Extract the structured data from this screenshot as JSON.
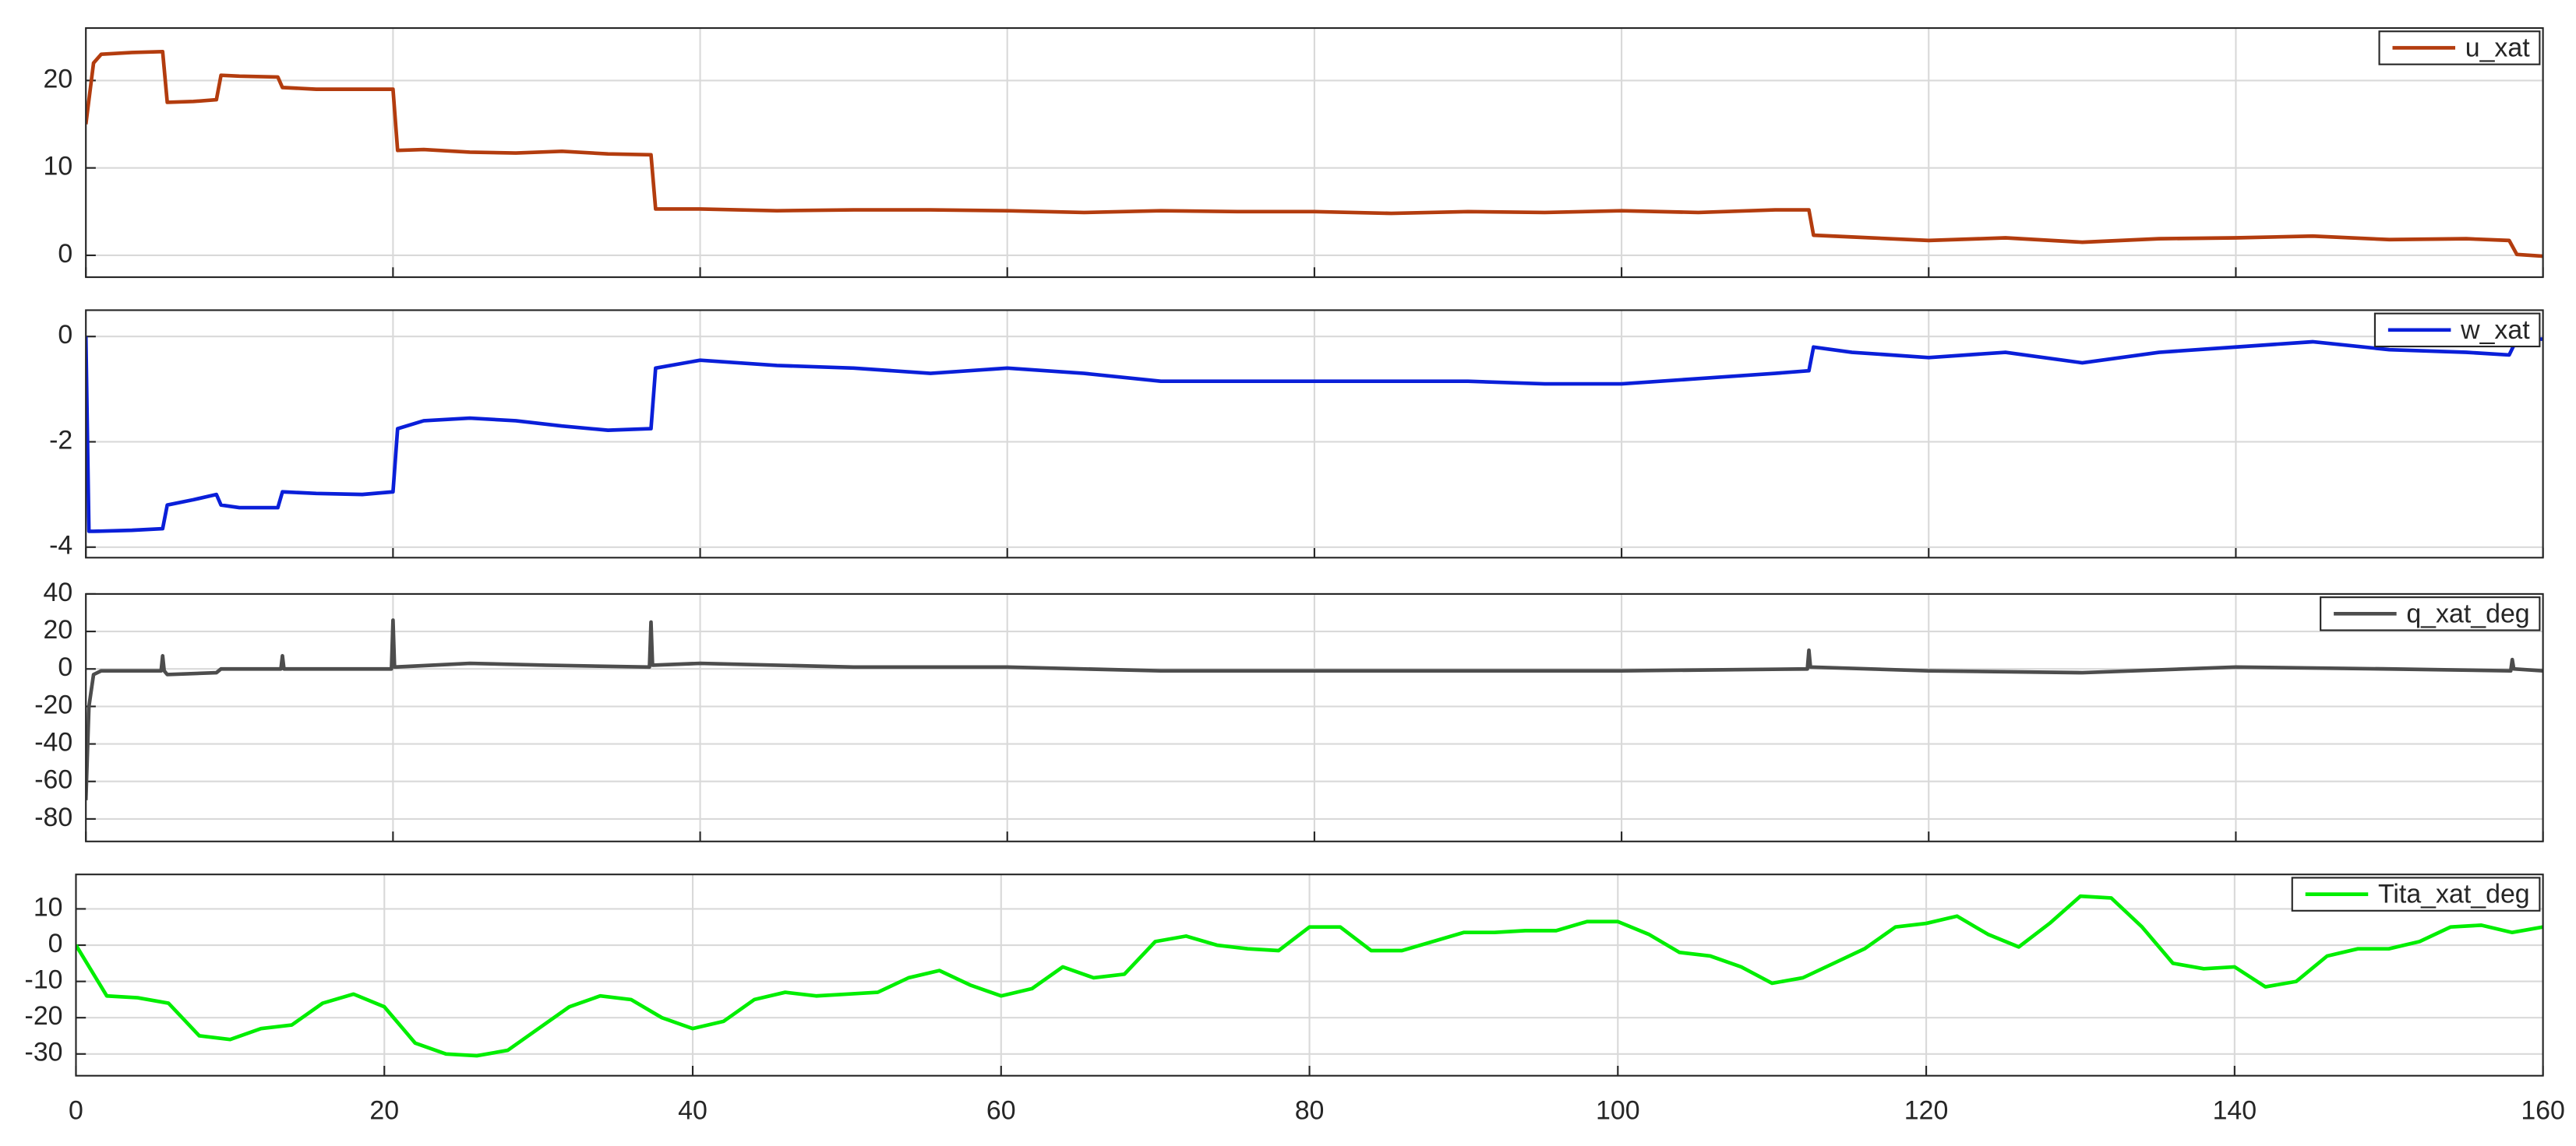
{
  "chart_data": [
    {
      "type": "line",
      "xlim": [
        0,
        160
      ],
      "xticks": [
        0,
        20,
        40,
        60,
        80,
        100,
        120,
        140,
        160
      ],
      "ylim": [
        -2.5,
        26
      ],
      "yticks": [
        0,
        10,
        20
      ],
      "grid": true,
      "legend": "upper right",
      "x": [
        0,
        0.5,
        1,
        3,
        5,
        5.3,
        7,
        8.5,
        8.8,
        10,
        12.5,
        12.8,
        15,
        18,
        20,
        20.3,
        22,
        25,
        28,
        31,
        34,
        36.8,
        37.1,
        40,
        45,
        50,
        55,
        60,
        65,
        70,
        75,
        80,
        85,
        90,
        95,
        100,
        105,
        110,
        112.2,
        112.5,
        115,
        120,
        125,
        130,
        135,
        140,
        145,
        150,
        155,
        157.8,
        158.3,
        160
      ],
      "series": [
        {
          "name": "u_xat",
          "color": "#b33c0e",
          "values": [
            15,
            22,
            23,
            23.2,
            23.3,
            17.5,
            17.6,
            17.8,
            20.6,
            20.5,
            20.4,
            19.2,
            19,
            19,
            19,
            12,
            12.1,
            11.8,
            11.7,
            11.9,
            11.6,
            11.5,
            5.3,
            5.3,
            5.1,
            5.2,
            5.2,
            5.1,
            4.9,
            5.1,
            5.0,
            5.0,
            4.8,
            5.0,
            4.9,
            5.1,
            4.9,
            5.2,
            5.2,
            2.3,
            2.1,
            1.7,
            2.0,
            1.5,
            1.9,
            2.0,
            2.2,
            1.8,
            1.9,
            1.7,
            0.1,
            -0.1
          ]
        }
      ]
    },
    {
      "type": "line",
      "xlim": [
        0,
        160
      ],
      "xticks": [
        0,
        20,
        40,
        60,
        80,
        100,
        120,
        140,
        160
      ],
      "ylim": [
        -4.2,
        0.5
      ],
      "yticks": [
        -4,
        -2,
        0
      ],
      "grid": true,
      "legend": "upper right",
      "x": [
        0,
        0.2,
        0.5,
        3,
        5,
        5.3,
        7,
        8.5,
        8.8,
        10,
        12.5,
        12.8,
        15,
        18,
        20,
        20.3,
        22,
        25,
        28,
        31,
        34,
        36.8,
        37.1,
        40,
        45,
        50,
        55,
        60,
        65,
        70,
        75,
        80,
        85,
        90,
        95,
        100,
        105,
        110,
        112.2,
        112.5,
        115,
        120,
        125,
        130,
        135,
        140,
        145,
        150,
        155,
        157.8,
        158.3,
        160
      ],
      "series": [
        {
          "name": "w_xat",
          "color": "#0a1fd9",
          "values": [
            0,
            -3.7,
            -3.7,
            -3.68,
            -3.65,
            -3.2,
            -3.1,
            -3.0,
            -3.2,
            -3.25,
            -3.25,
            -2.95,
            -2.98,
            -3.0,
            -2.95,
            -1.75,
            -1.6,
            -1.55,
            -1.6,
            -1.7,
            -1.78,
            -1.75,
            -0.6,
            -0.45,
            -0.55,
            -0.6,
            -0.7,
            -0.6,
            -0.7,
            -0.85,
            -0.85,
            -0.85,
            -0.85,
            -0.85,
            -0.9,
            -0.9,
            -0.8,
            -0.7,
            -0.65,
            -0.2,
            -0.3,
            -0.4,
            -0.3,
            -0.5,
            -0.3,
            -0.2,
            -0.1,
            -0.25,
            -0.3,
            -0.35,
            -0.05,
            -0.05
          ]
        }
      ]
    },
    {
      "type": "line",
      "xlim": [
        0,
        160
      ],
      "xticks": [
        0,
        20,
        40,
        60,
        80,
        100,
        120,
        140,
        160
      ],
      "ylim": [
        -92,
        40
      ],
      "yticks": [
        40,
        20,
        0,
        -20,
        -40,
        -60,
        -80
      ],
      "grid": true,
      "legend": "upper right",
      "x": [
        0,
        0.2,
        0.5,
        1,
        4.9,
        5,
        5.1,
        5.3,
        8.5,
        8.8,
        12.7,
        12.8,
        12.9,
        15,
        19.9,
        20,
        20.1,
        25,
        30,
        36.7,
        36.8,
        36.9,
        40,
        50,
        60,
        70,
        80,
        90,
        100,
        112.1,
        112.2,
        112.3,
        120,
        130,
        140,
        150,
        157.9,
        158,
        158.1,
        160
      ],
      "series": [
        {
          "name": "q_xat_deg",
          "color": "#4d4d4d",
          "values": [
            -70,
            -20,
            -3,
            -1,
            -1,
            7,
            -1,
            -3,
            -2,
            0,
            0,
            7,
            0,
            0,
            0,
            26,
            1,
            3,
            2,
            1,
            25,
            2,
            3,
            1,
            1,
            -1,
            -1,
            -1,
            -1,
            0,
            10,
            1,
            -1,
            -2,
            1,
            0,
            -1,
            5,
            0,
            -1
          ]
        }
      ]
    },
    {
      "type": "line",
      "xlim": [
        0,
        160
      ],
      "xticks": [
        0,
        20,
        40,
        60,
        80,
        100,
        120,
        140,
        160
      ],
      "ylim": [
        -36,
        19.5
      ],
      "yticks": [
        -30,
        -20,
        -10,
        0,
        10
      ],
      "grid": true,
      "legend": "upper right",
      "x": [
        0,
        2,
        4,
        6,
        8,
        10,
        12,
        14,
        16,
        18,
        20,
        22,
        24,
        26,
        28,
        30,
        32,
        34,
        36,
        38,
        40,
        42,
        44,
        46,
        48,
        50,
        52,
        54,
        56,
        58,
        60,
        62,
        64,
        66,
        68,
        70,
        72,
        74,
        76,
        78,
        80,
        82,
        84,
        86,
        88,
        90,
        92,
        94,
        96,
        98,
        100,
        102,
        104,
        106,
        108,
        110,
        112,
        114,
        116,
        118,
        120,
        122,
        124,
        126,
        128,
        130,
        132,
        134,
        136,
        138,
        140,
        142,
        144,
        146,
        148,
        150,
        152,
        154,
        156,
        158,
        160
      ],
      "series": [
        {
          "name": "Tita_xat_deg",
          "color": "#00ee00",
          "values": [
            0,
            -14,
            -14.5,
            -16,
            -25,
            -26,
            -23,
            -22,
            -16,
            -13.5,
            -17,
            -27,
            -30,
            -30.5,
            -29,
            -23,
            -17,
            -14,
            -15,
            -20,
            -23,
            -21,
            -15,
            -13,
            -14,
            -13.5,
            -13,
            -9,
            -7,
            -11,
            -14,
            -12,
            -6,
            -9,
            -8,
            1,
            2.5,
            0,
            -1,
            -1.5,
            5,
            5,
            -1.5,
            -1.5,
            1,
            3.5,
            3.5,
            4,
            4,
            6.5,
            6.5,
            3,
            -2,
            -3,
            -6,
            -10.5,
            -9,
            -5,
            -1,
            5,
            6,
            8,
            3,
            -0.5,
            6,
            13.5,
            13,
            5,
            -5,
            -6.5,
            -6,
            -11.5,
            -10,
            -3,
            -1,
            -1,
            1,
            5,
            5.5,
            3.5,
            5
          ]
        }
      ]
    }
  ]
}
